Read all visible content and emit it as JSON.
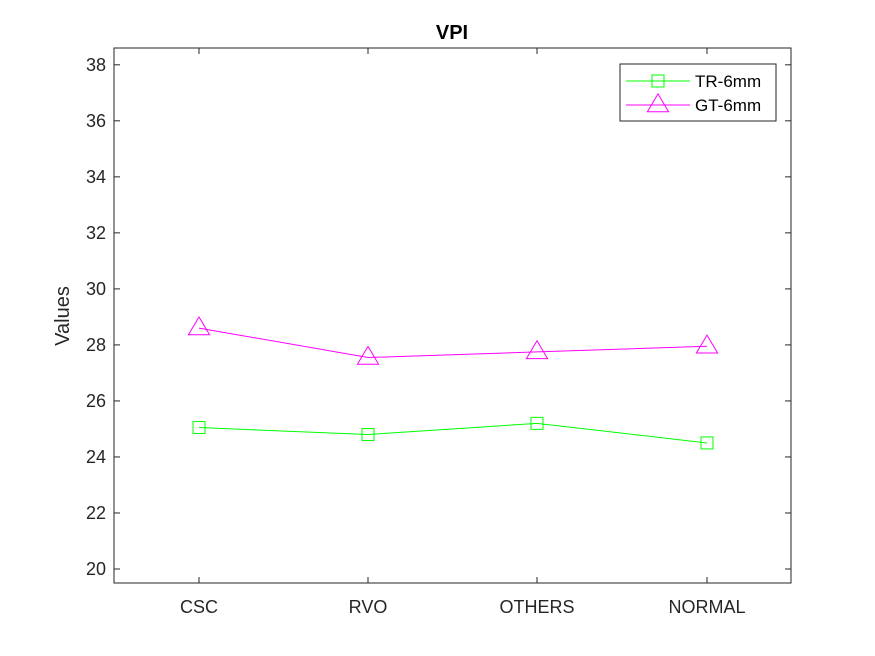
{
  "chart_data": {
    "type": "line",
    "title": "VPI",
    "xlabel": "",
    "ylabel": "Values",
    "categories": [
      "CSC",
      "RVO",
      "OTHERS",
      "NORMAL"
    ],
    "ylim": [
      19.5,
      38.6
    ],
    "yticks": [
      20,
      22,
      24,
      26,
      28,
      30,
      32,
      34,
      36,
      38
    ],
    "grid": false,
    "legend_position": "top-right",
    "series": [
      {
        "name": "TR-6mm",
        "values": [
          25.05,
          24.8,
          25.2,
          24.5
        ],
        "color": "#00ff00",
        "marker": "square"
      },
      {
        "name": "GT-6mm",
        "values": [
          28.6,
          27.55,
          27.75,
          27.95
        ],
        "color": "#ff00ff",
        "marker": "triangle"
      }
    ]
  }
}
